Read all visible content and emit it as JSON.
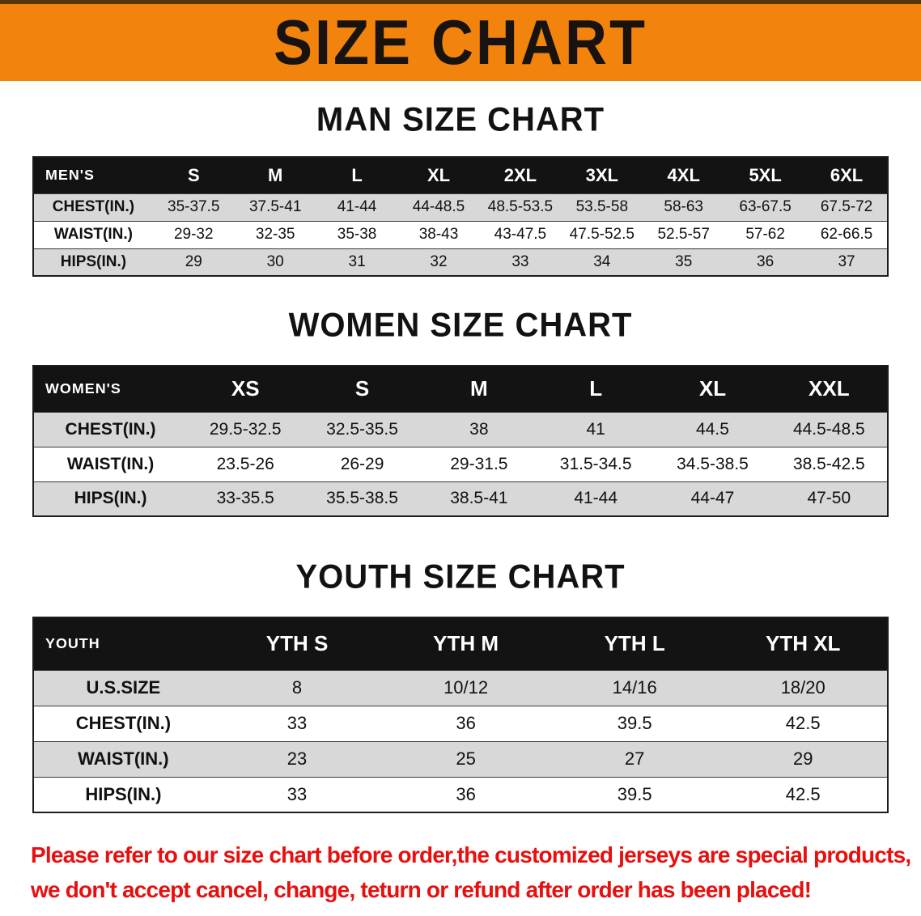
{
  "banner": {
    "title": "SIZE CHART",
    "bg_color": "#f2830d"
  },
  "chart_data": [
    {
      "type": "table",
      "title": "MAN SIZE CHART",
      "columns": [
        "MEN'S",
        "S",
        "M",
        "L",
        "XL",
        "2XL",
        "3XL",
        "4XL",
        "5XL",
        "6XL"
      ],
      "rows": [
        [
          "CHEST(IN.)",
          "35-37.5",
          "37.5-41",
          "41-44",
          "44-48.5",
          "48.5-53.5",
          "53.5-58",
          "58-63",
          "63-67.5",
          "67.5-72"
        ],
        [
          "WAIST(IN.)",
          "29-32",
          "32-35",
          "35-38",
          "38-43",
          "43-47.5",
          "47.5-52.5",
          "52.5-57",
          "57-62",
          "62-66.5"
        ],
        [
          "HIPS(IN.)",
          "29",
          "30",
          "31",
          "32",
          "33",
          "34",
          "35",
          "36",
          "37"
        ]
      ]
    },
    {
      "type": "table",
      "title": "WOMEN SIZE CHART",
      "columns": [
        "WOMEN'S",
        "XS",
        "S",
        "M",
        "L",
        "XL",
        "XXL"
      ],
      "rows": [
        [
          "CHEST(IN.)",
          "29.5-32.5",
          "32.5-35.5",
          "38",
          "41",
          "44.5",
          "44.5-48.5"
        ],
        [
          "WAIST(IN.)",
          "23.5-26",
          "26-29",
          "29-31.5",
          "31.5-34.5",
          "34.5-38.5",
          "38.5-42.5"
        ],
        [
          "HIPS(IN.)",
          "33-35.5",
          "35.5-38.5",
          "38.5-41",
          "41-44",
          "44-47",
          "47-50"
        ]
      ]
    },
    {
      "type": "table",
      "title": "YOUTH SIZE CHART",
      "columns": [
        "YOUTH",
        "YTH S",
        "YTH M",
        "YTH L",
        "YTH XL"
      ],
      "rows": [
        [
          "U.S.SIZE",
          "8",
          "10/12",
          "14/16",
          "18/20"
        ],
        [
          "CHEST(IN.)",
          "33",
          "36",
          "39.5",
          "42.5"
        ],
        [
          "WAIST(IN.)",
          "23",
          "25",
          "27",
          "29"
        ],
        [
          "HIPS(IN.)",
          "33",
          "36",
          "39.5",
          "42.5"
        ]
      ]
    }
  ],
  "disclaimer": {
    "line1": "Please refer to our size chart before order,the customized jerseys are special products,",
    "line2": "we don't accept cancel, change, teturn or refund after order has been placed!",
    "color": "#e8100f"
  }
}
